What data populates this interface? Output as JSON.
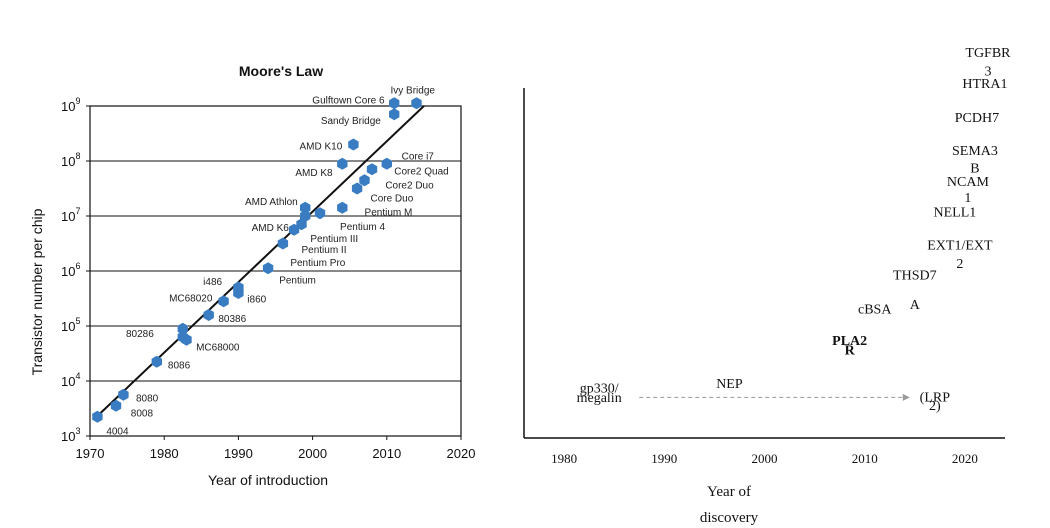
{
  "chart_data": [
    {
      "type": "scatter",
      "title": "Moore's Law",
      "xlabel": "Year of introduction",
      "ylabel": "Transistor number per chip",
      "xlim": [
        1970,
        2020
      ],
      "ylim_log10": [
        3,
        9
      ],
      "x_ticks": [
        "1970",
        "1980",
        "1990",
        "2000",
        "2010",
        "2020"
      ],
      "y_ticks": [
        {
          "base": "10",
          "exp": "3"
        },
        {
          "base": "10",
          "exp": "4"
        },
        {
          "base": "10",
          "exp": "5"
        },
        {
          "base": "10",
          "exp": "6"
        },
        {
          "base": "10",
          "exp": "7"
        },
        {
          "base": "10",
          "exp": "8"
        },
        {
          "base": "10",
          "exp": "9"
        }
      ],
      "trend_line": {
        "from": [
          1970.5,
          3.3
        ],
        "to": [
          2015,
          9
        ]
      },
      "point_color": "#3a7cc2",
      "points": [
        {
          "x": 1971,
          "y": 3.35
        },
        {
          "x": 1973.5,
          "y": 3.55
        },
        {
          "x": 1974.5,
          "y": 3.75
        },
        {
          "x": 1979,
          "y": 4.35
        },
        {
          "x": 1982.5,
          "y": 4.8
        },
        {
          "x": 1982.5,
          "y": 4.95
        },
        {
          "x": 1983,
          "y": 4.75
        },
        {
          "x": 1986,
          "y": 5.2
        },
        {
          "x": 1988,
          "y": 5.45
        },
        {
          "x": 1990,
          "y": 5.6
        },
        {
          "x": 1990,
          "y": 5.7
        },
        {
          "x": 1994,
          "y": 6.05
        },
        {
          "x": 1996,
          "y": 6.5
        },
        {
          "x": 1997.5,
          "y": 6.75
        },
        {
          "x": 1998.5,
          "y": 6.85
        },
        {
          "x": 1999,
          "y": 7.0
        },
        {
          "x": 1999,
          "y": 7.15
        },
        {
          "x": 2001,
          "y": 7.05
        },
        {
          "x": 2004,
          "y": 7.15
        },
        {
          "x": 2004,
          "y": 7.95
        },
        {
          "x": 2005.5,
          "y": 8.3
        },
        {
          "x": 2006,
          "y": 7.5
        },
        {
          "x": 2007,
          "y": 7.65
        },
        {
          "x": 2008,
          "y": 7.85
        },
        {
          "x": 2010,
          "y": 7.95
        },
        {
          "x": 2011,
          "y": 8.85
        },
        {
          "x": 2011,
          "y": 9.05
        },
        {
          "x": 2014,
          "y": 9.05
        }
      ],
      "annotations": [
        {
          "text": "4004",
          "x": 1972.2,
          "y": 3.1,
          "anchor": "start"
        },
        {
          "text": "8008",
          "x": 1975.5,
          "y": 3.43,
          "anchor": "start"
        },
        {
          "text": "8080",
          "x": 1976.2,
          "y": 3.7,
          "anchor": "start"
        },
        {
          "text": "8086",
          "x": 1980.5,
          "y": 4.3,
          "anchor": "start"
        },
        {
          "text": "80286",
          "x": 1978.6,
          "y": 4.87,
          "anchor": "end"
        },
        {
          "text": "MC68000",
          "x": 1984.3,
          "y": 4.63,
          "anchor": "start"
        },
        {
          "text": "80386",
          "x": 1987.3,
          "y": 5.15,
          "anchor": "start"
        },
        {
          "text": "MC68020",
          "x": 1986.5,
          "y": 5.52,
          "anchor": "end"
        },
        {
          "text": "i486",
          "x": 1987.8,
          "y": 5.82,
          "anchor": "end"
        },
        {
          "text": "i860",
          "x": 1991.2,
          "y": 5.5,
          "anchor": "start"
        },
        {
          "text": "Pentium",
          "x": 1995.5,
          "y": 5.85,
          "anchor": "start"
        },
        {
          "text": "Pentium Pro",
          "x": 1997,
          "y": 6.16,
          "anchor": "start"
        },
        {
          "text": "Pentium II",
          "x": 1998.5,
          "y": 6.4,
          "anchor": "start"
        },
        {
          "text": "Pentium III",
          "x": 1999.7,
          "y": 6.6,
          "anchor": "start"
        },
        {
          "text": "AMD K6",
          "x": 1996.8,
          "y": 6.8,
          "anchor": "end"
        },
        {
          "text": "Pentium 4",
          "x": 2003.7,
          "y": 6.82,
          "anchor": "start"
        },
        {
          "text": "AMD Athlon",
          "x": 1998,
          "y": 7.27,
          "anchor": "end"
        },
        {
          "text": "Pentium M",
          "x": 2007,
          "y": 7.08,
          "anchor": "start"
        },
        {
          "text": "Core Duo",
          "x": 2007.8,
          "y": 7.34,
          "anchor": "start"
        },
        {
          "text": "Core2 Duo",
          "x": 2009.8,
          "y": 7.57,
          "anchor": "start"
        },
        {
          "text": "Core2 Quad",
          "x": 2011,
          "y": 7.83,
          "anchor": "start"
        },
        {
          "text": "Core i7",
          "x": 2012,
          "y": 8.1,
          "anchor": "start"
        },
        {
          "text": "AMD K8",
          "x": 2002.7,
          "y": 7.8,
          "anchor": "end"
        },
        {
          "text": "AMD K10",
          "x": 2004,
          "y": 8.28,
          "anchor": "end"
        },
        {
          "text": "Sandy Bridge",
          "x": 2009.2,
          "y": 8.75,
          "anchor": "end"
        },
        {
          "text": "Gulftown Core 6",
          "x": 2009.7,
          "y": 9.12,
          "anchor": "end"
        },
        {
          "text": "Ivy Bridge",
          "x": 2010.5,
          "y": 9.3,
          "anchor": "start"
        }
      ]
    },
    {
      "type": "scatter",
      "title": "",
      "xlabel": "Year of discovery",
      "xlim": [
        1976,
        2024
      ],
      "x_ticks": [
        "1980",
        "1990",
        "2000",
        "2010",
        "2020"
      ],
      "highlight_color": "#2e6fb5",
      "muted_color": "#b8b8b8",
      "arrow": {
        "from": 1987.5,
        "to": 2014.5
      },
      "entries": [
        {
          "text": "gp330/",
          "x": 1983.5,
          "level": 0.28,
          "style": "normal"
        },
        {
          "text": "megalin",
          "x": 1983.5,
          "level": 0.11,
          "style": "normal"
        },
        {
          "text": "(LRP",
          "x": 2017,
          "level": 0.12,
          "style": "muted"
        },
        {
          "text": "2)",
          "x": 2017,
          "level": -0.04,
          "style": "muted"
        },
        {
          "text": "NEP",
          "x": 1996.5,
          "level": 0.36,
          "style": "normal"
        },
        {
          "text": "PLA2",
          "x": 2008.5,
          "level": 1.15,
          "style": "highlight"
        },
        {
          "text": "R",
          "x": 2008.5,
          "level": 0.97,
          "style": "highlight"
        },
        {
          "text": "cBSA",
          "x": 2011,
          "level": 1.72,
          "style": "normal"
        },
        {
          "text": "THSD7",
          "x": 2015,
          "level": 2.34,
          "style": "normal"
        },
        {
          "text": "A",
          "x": 2015,
          "level": 1.8,
          "style": "normal"
        },
        {
          "text": "EXT1/EXT",
          "x": 2019.5,
          "level": 2.88,
          "style": "normal"
        },
        {
          "text": "2",
          "x": 2019.5,
          "level": 2.55,
          "style": "normal"
        },
        {
          "text": "NELL1",
          "x": 2019,
          "level": 3.48,
          "style": "normal"
        },
        {
          "text": "NCAM",
          "x": 2020.3,
          "level": 4.04,
          "style": "normal"
        },
        {
          "text": "1",
          "x": 2020.3,
          "level": 3.75,
          "style": "normal"
        },
        {
          "text": "SEMA3",
          "x": 2021,
          "level": 4.6,
          "style": "normal"
        },
        {
          "text": "B",
          "x": 2021,
          "level": 4.28,
          "style": "normal"
        },
        {
          "text": "PCDH7",
          "x": 2021.2,
          "level": 5.2,
          "style": "normal"
        },
        {
          "text": "HTRA1",
          "x": 2022,
          "level": 5.82,
          "style": "normal"
        },
        {
          "text": "TGFBR",
          "x": 2022.3,
          "level": 6.38,
          "style": "normal"
        },
        {
          "text": "3",
          "x": 2022.3,
          "level": 6.05,
          "style": "normal"
        }
      ]
    }
  ]
}
